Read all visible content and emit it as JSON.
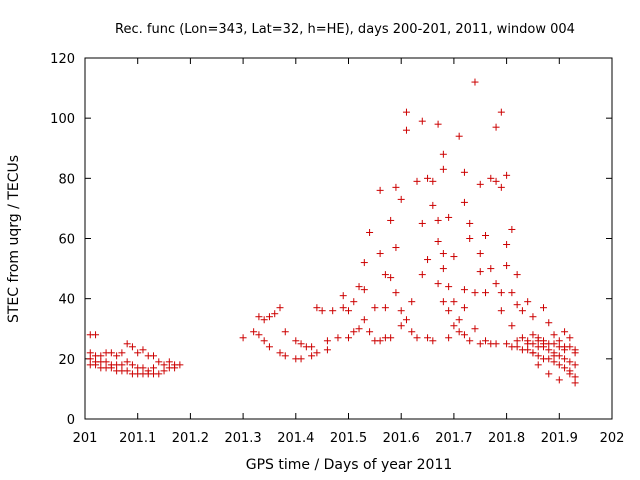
{
  "chart_data": {
    "type": "scatter",
    "title": "Rec. func (Lon=343, Lat=32, h=HE), days 200-201, 2011, window 004",
    "xlabel": "GPS time / Days of year 2011",
    "ylabel": "STEC from uqrg / TECUs",
    "xlim": [
      201,
      202
    ],
    "ylim": [
      0,
      120
    ],
    "xticks": [
      201,
      201.1,
      201.2,
      201.3,
      201.4,
      201.5,
      201.6,
      201.7,
      201.8,
      201.9,
      202
    ],
    "xtick_labels": [
      "201",
      "201.1",
      "201.2",
      "201.3",
      "201.4",
      "201.5",
      "201.6",
      "201.7",
      "201.8",
      "201.9",
      "202"
    ],
    "yticks": [
      0,
      20,
      40,
      60,
      80,
      100,
      120
    ],
    "ytick_labels": [
      "0",
      "20",
      "40",
      "60",
      "80",
      "100",
      "120"
    ],
    "grid": false,
    "marker": "+",
    "color": "#cc0000",
    "series": [
      {
        "name": "STEC",
        "points": [
          [
            201.01,
            28
          ],
          [
            201.02,
            28
          ],
          [
            201.01,
            22
          ],
          [
            201.02,
            21
          ],
          [
            201.03,
            21
          ],
          [
            201.04,
            22
          ],
          [
            201.05,
            22
          ],
          [
            201.06,
            21
          ],
          [
            201.07,
            22
          ],
          [
            201.08,
            25
          ],
          [
            201.09,
            24
          ],
          [
            201.1,
            22
          ],
          [
            201.11,
            23
          ],
          [
            201.12,
            21
          ],
          [
            201.13,
            21
          ],
          [
            201.14,
            19
          ],
          [
            201.15,
            18
          ],
          [
            201.16,
            19
          ],
          [
            201.17,
            18
          ],
          [
            201.01,
            20
          ],
          [
            201.02,
            19
          ],
          [
            201.03,
            19
          ],
          [
            201.04,
            19
          ],
          [
            201.05,
            18
          ],
          [
            201.06,
            18
          ],
          [
            201.07,
            18
          ],
          [
            201.08,
            19
          ],
          [
            201.09,
            18
          ],
          [
            201.1,
            17
          ],
          [
            201.11,
            17
          ],
          [
            201.12,
            16
          ],
          [
            201.13,
            17
          ],
          [
            201.01,
            18
          ],
          [
            201.02,
            18
          ],
          [
            201.03,
            17
          ],
          [
            201.04,
            17
          ],
          [
            201.05,
            17
          ],
          [
            201.06,
            16
          ],
          [
            201.07,
            16
          ],
          [
            201.08,
            16
          ],
          [
            201.09,
            15
          ],
          [
            201.1,
            15
          ],
          [
            201.11,
            15
          ],
          [
            201.12,
            15
          ],
          [
            201.13,
            15
          ],
          [
            201.14,
            15
          ],
          [
            201.15,
            16
          ],
          [
            201.16,
            17
          ],
          [
            201.17,
            17
          ],
          [
            201.18,
            18
          ],
          [
            201.3,
            27
          ],
          [
            201.32,
            29
          ],
          [
            201.33,
            28
          ],
          [
            201.34,
            26
          ],
          [
            201.35,
            24
          ],
          [
            201.37,
            22
          ],
          [
            201.38,
            21
          ],
          [
            201.4,
            20
          ],
          [
            201.41,
            20
          ],
          [
            201.43,
            21
          ],
          [
            201.44,
            22
          ],
          [
            201.46,
            23
          ],
          [
            201.33,
            34
          ],
          [
            201.34,
            33
          ],
          [
            201.35,
            34
          ],
          [
            201.36,
            35
          ],
          [
            201.37,
            37
          ],
          [
            201.38,
            29
          ],
          [
            201.4,
            26
          ],
          [
            201.41,
            25
          ],
          [
            201.42,
            24
          ],
          [
            201.43,
            24
          ],
          [
            201.44,
            37
          ],
          [
            201.45,
            36
          ],
          [
            201.46,
            26
          ],
          [
            201.47,
            36
          ],
          [
            201.48,
            27
          ],
          [
            201.49,
            41
          ],
          [
            201.49,
            37
          ],
          [
            201.5,
            27
          ],
          [
            201.5,
            36
          ],
          [
            201.51,
            29
          ],
          [
            201.51,
            39
          ],
          [
            201.52,
            44
          ],
          [
            201.52,
            30
          ],
          [
            201.53,
            43
          ],
          [
            201.53,
            52
          ],
          [
            201.53,
            33
          ],
          [
            201.54,
            29
          ],
          [
            201.54,
            62
          ],
          [
            201.55,
            26
          ],
          [
            201.55,
            37
          ],
          [
            201.56,
            55
          ],
          [
            201.56,
            76
          ],
          [
            201.56,
            26
          ],
          [
            201.57,
            48
          ],
          [
            201.57,
            37
          ],
          [
            201.57,
            27
          ],
          [
            201.58,
            66
          ],
          [
            201.58,
            47
          ],
          [
            201.58,
            27
          ],
          [
            201.59,
            57
          ],
          [
            201.59,
            77
          ],
          [
            201.59,
            42
          ],
          [
            201.6,
            73
          ],
          [
            201.6,
            36
          ],
          [
            201.6,
            31
          ],
          [
            201.61,
            102
          ],
          [
            201.61,
            33
          ],
          [
            201.61,
            96
          ],
          [
            201.62,
            29
          ],
          [
            201.62,
            39
          ],
          [
            201.63,
            79
          ],
          [
            201.63,
            27
          ],
          [
            201.64,
            65
          ],
          [
            201.64,
            48
          ],
          [
            201.64,
            99
          ],
          [
            201.65,
            80
          ],
          [
            201.65,
            27
          ],
          [
            201.65,
            53
          ],
          [
            201.66,
            79
          ],
          [
            201.66,
            71
          ],
          [
            201.66,
            26
          ],
          [
            201.67,
            98
          ],
          [
            201.67,
            66
          ],
          [
            201.67,
            59
          ],
          [
            201.67,
            45
          ],
          [
            201.68,
            88
          ],
          [
            201.68,
            83
          ],
          [
            201.68,
            55
          ],
          [
            201.68,
            50
          ],
          [
            201.68,
            39
          ],
          [
            201.69,
            67
          ],
          [
            201.69,
            44
          ],
          [
            201.69,
            36
          ],
          [
            201.69,
            27
          ],
          [
            201.7,
            54
          ],
          [
            201.7,
            39
          ],
          [
            201.7,
            31
          ],
          [
            201.71,
            94
          ],
          [
            201.71,
            33
          ],
          [
            201.71,
            29
          ],
          [
            201.72,
            72
          ],
          [
            201.72,
            82
          ],
          [
            201.72,
            43
          ],
          [
            201.72,
            37
          ],
          [
            201.72,
            28
          ],
          [
            201.73,
            60
          ],
          [
            201.73,
            65
          ],
          [
            201.73,
            26
          ],
          [
            201.74,
            112
          ],
          [
            201.74,
            42
          ],
          [
            201.74,
            30
          ],
          [
            201.75,
            78
          ],
          [
            201.75,
            55
          ],
          [
            201.75,
            49
          ],
          [
            201.75,
            25
          ],
          [
            201.76,
            61
          ],
          [
            201.76,
            42
          ],
          [
            201.76,
            26
          ],
          [
            201.77,
            80
          ],
          [
            201.77,
            50
          ],
          [
            201.77,
            25
          ],
          [
            201.78,
            97
          ],
          [
            201.78,
            79
          ],
          [
            201.78,
            45
          ],
          [
            201.78,
            25
          ],
          [
            201.79,
            102
          ],
          [
            201.79,
            77
          ],
          [
            201.79,
            42
          ],
          [
            201.79,
            36
          ],
          [
            201.8,
            81
          ],
          [
            201.8,
            58
          ],
          [
            201.8,
            51
          ],
          [
            201.8,
            25
          ],
          [
            201.81,
            63
          ],
          [
            201.81,
            42
          ],
          [
            201.81,
            31
          ],
          [
            201.82,
            48
          ],
          [
            201.82,
            38
          ],
          [
            201.82,
            26
          ],
          [
            201.83,
            36
          ],
          [
            201.83,
            27
          ],
          [
            201.84,
            39
          ],
          [
            201.84,
            25
          ],
          [
            201.85,
            34
          ],
          [
            201.85,
            22
          ],
          [
            201.86,
            26
          ],
          [
            201.86,
            18
          ],
          [
            201.87,
            37
          ],
          [
            201.87,
            25
          ],
          [
            201.88,
            32
          ],
          [
            201.88,
            15
          ],
          [
            201.89,
            28
          ],
          [
            201.89,
            21
          ],
          [
            201.9,
            26
          ],
          [
            201.9,
            13
          ],
          [
            201.91,
            29
          ],
          [
            201.91,
            23
          ],
          [
            201.92,
            27
          ],
          [
            201.92,
            16
          ],
          [
            201.93,
            22
          ],
          [
            201.93,
            12
          ],
          [
            201.81,
            24
          ],
          [
            201.82,
            24
          ],
          [
            201.83,
            23
          ],
          [
            201.84,
            23
          ],
          [
            201.85,
            22
          ],
          [
            201.86,
            21
          ],
          [
            201.87,
            20
          ],
          [
            201.88,
            20
          ],
          [
            201.89,
            19
          ],
          [
            201.9,
            18
          ],
          [
            201.91,
            17
          ],
          [
            201.92,
            15
          ],
          [
            201.93,
            14
          ],
          [
            201.84,
            26
          ],
          [
            201.85,
            25
          ],
          [
            201.86,
            24
          ],
          [
            201.87,
            24
          ],
          [
            201.88,
            23
          ],
          [
            201.89,
            22
          ],
          [
            201.9,
            21
          ],
          [
            201.91,
            20
          ],
          [
            201.92,
            19
          ],
          [
            201.93,
            18
          ],
          [
            201.85,
            28
          ],
          [
            201.86,
            27
          ],
          [
            201.87,
            26
          ],
          [
            201.88,
            25
          ],
          [
            201.89,
            25
          ],
          [
            201.9,
            24
          ],
          [
            201.91,
            24
          ],
          [
            201.92,
            24
          ],
          [
            201.93,
            23
          ]
        ]
      }
    ]
  }
}
